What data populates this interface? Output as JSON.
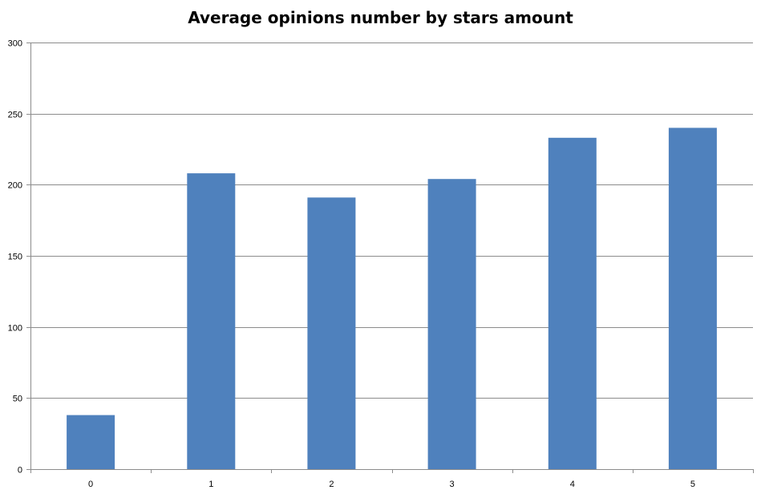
{
  "chart_data": {
    "type": "bar",
    "title": "Average opinions number by stars amount",
    "xlabel": "",
    "ylabel": "",
    "categories": [
      "0",
      "1",
      "2",
      "3",
      "4",
      "5"
    ],
    "values": [
      38,
      208,
      191,
      204,
      233,
      240
    ],
    "ylim": [
      0,
      300
    ],
    "yticks": [
      0,
      50,
      100,
      150,
      200,
      250,
      300
    ],
    "grid": true,
    "legend": "none",
    "colors": {
      "bar": "#4F81BD",
      "grid": "#8C8C8C",
      "axis": "#8C8C8C"
    }
  }
}
